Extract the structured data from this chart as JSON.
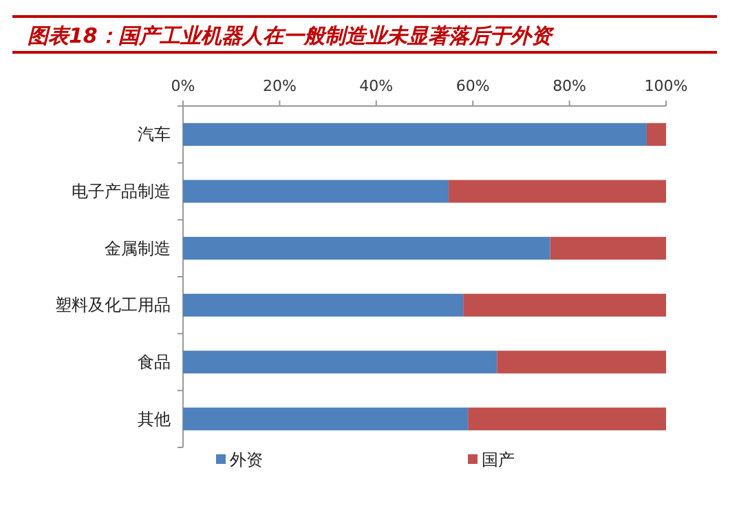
{
  "chart_data": {
    "type": "bar",
    "orientation": "horizontal",
    "stacked": true,
    "title": "图表18：国产工业机器人在一般制造业未显著落后于外资",
    "categories": [
      "汽车",
      "电子产品制造",
      "金属制造",
      "塑料及化工用品",
      "食品",
      "其他"
    ],
    "series": [
      {
        "name": "外资",
        "color": "#4f81bd",
        "values": [
          96,
          55,
          76,
          58,
          65,
          59
        ]
      },
      {
        "name": "国产",
        "color": "#c0504d",
        "values": [
          4,
          45,
          24,
          42,
          35,
          41
        ]
      }
    ],
    "xlim": [
      0,
      100
    ],
    "xticks": [
      {
        "value": 0,
        "label": "0%"
      },
      {
        "value": 20,
        "label": "20%"
      },
      {
        "value": 40,
        "label": "40%"
      },
      {
        "value": 60,
        "label": "60%"
      },
      {
        "value": 80,
        "label": "80%"
      },
      {
        "value": 100,
        "label": "100%"
      }
    ],
    "legend": "bottom"
  }
}
